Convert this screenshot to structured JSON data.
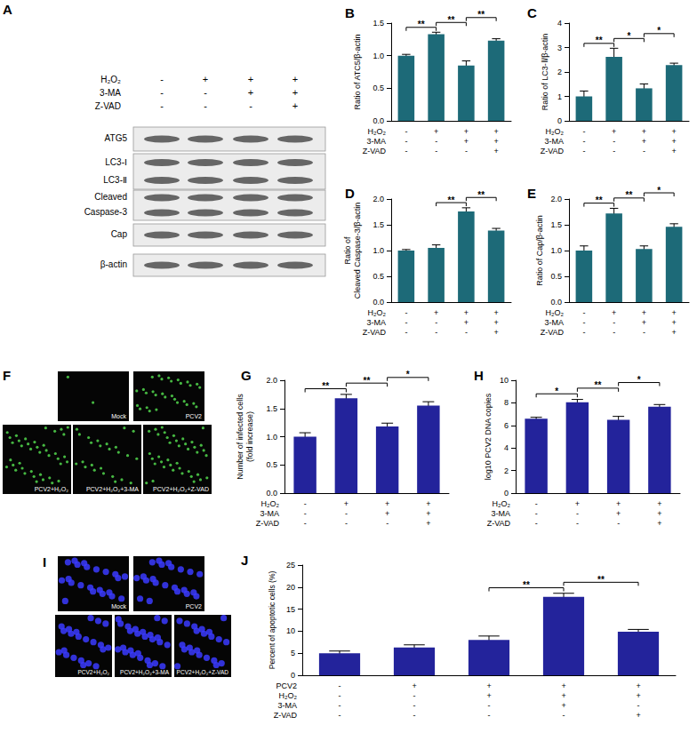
{
  "chart_data": [
    {
      "type": "bar",
      "title": "B",
      "ylabel": "Ratio of ATC5/β-actin",
      "categories": [
        null,
        null,
        null,
        null
      ],
      "values": [
        1.0,
        1.33,
        0.85,
        1.23
      ],
      "errors": [
        0.02,
        0.03,
        0.07,
        0.03
      ],
      "color": "#1d6a78",
      "ylim": [
        0,
        1.5
      ],
      "yticks": [
        {
          "value": 0,
          "label": "0.0"
        },
        0.5,
        {
          "value": 1,
          "label": "1.0"
        },
        1.5
      ],
      "grid": false,
      "treatments": [
        {
          "name": "H₂O₂",
          "signs": [
            "-",
            "+",
            "+",
            "+"
          ]
        },
        {
          "name": "3-MA",
          "signs": [
            "-",
            "-",
            "+",
            "+"
          ]
        },
        {
          "name": "Z-VAD",
          "signs": [
            "-",
            "-",
            "-",
            "+"
          ]
        }
      ],
      "significance": [
        {
          "from": 0,
          "to": 1,
          "label": "**"
        },
        {
          "from": 1,
          "to": 2,
          "label": "**"
        },
        {
          "from": 2,
          "to": 3,
          "label": "**"
        }
      ]
    },
    {
      "type": "bar",
      "title": "C",
      "ylabel": "Ratio of LC3-Ⅱ/β-actin",
      "categories": [
        null,
        null,
        null,
        null
      ],
      "values": [
        1.0,
        2.62,
        1.33,
        2.28
      ],
      "errors": [
        0.22,
        0.35,
        0.18,
        0.08
      ],
      "color": "#1d6a78",
      "ylim": [
        0,
        4
      ],
      "yticks": [
        0,
        1,
        2,
        3,
        4
      ],
      "grid": false,
      "treatments": [
        {
          "name": "H₂O₂",
          "signs": [
            "-",
            "+",
            "+",
            "+"
          ]
        },
        {
          "name": "3-MA",
          "signs": [
            "-",
            "-",
            "+",
            "+"
          ]
        },
        {
          "name": "Z-VAD",
          "signs": [
            "-",
            "-",
            "-",
            "+"
          ]
        }
      ],
      "significance": [
        {
          "from": 0,
          "to": 1,
          "label": "**"
        },
        {
          "from": 1,
          "to": 2,
          "label": "*"
        },
        {
          "from": 2,
          "to": 3,
          "label": "*"
        }
      ]
    },
    {
      "type": "bar",
      "title": "D",
      "ylabel": "Ratio of\nCleaved Caspase-3/β-actin",
      "categories": [
        null,
        null,
        null,
        null
      ],
      "values": [
        1.0,
        1.05,
        1.76,
        1.39
      ],
      "errors": [
        0.02,
        0.06,
        0.07,
        0.04
      ],
      "color": "#1d6a78",
      "ylim": [
        0,
        2
      ],
      "yticks": [
        {
          "value": 0,
          "label": "0.0"
        },
        0.5,
        {
          "value": 1,
          "label": "1.0"
        },
        1.5,
        {
          "value": 2,
          "label": "2.0"
        }
      ],
      "grid": false,
      "treatments": [
        {
          "name": "H₂O₂",
          "signs": [
            "-",
            "+",
            "+",
            "+"
          ]
        },
        {
          "name": "3-MA",
          "signs": [
            "-",
            "-",
            "+",
            "+"
          ]
        },
        {
          "name": "Z-VAD",
          "signs": [
            "-",
            "-",
            "-",
            "+"
          ]
        }
      ],
      "significance": [
        {
          "from": 1,
          "to": 2,
          "label": "**"
        },
        {
          "from": 2,
          "to": 3,
          "label": "**"
        }
      ]
    },
    {
      "type": "bar",
      "title": "E",
      "ylabel": "Ratio of Cap/β-actin",
      "categories": [
        null,
        null,
        null,
        null
      ],
      "values": [
        1.0,
        1.72,
        1.03,
        1.46
      ],
      "errors": [
        0.09,
        0.1,
        0.06,
        0.06
      ],
      "color": "#1d6a78",
      "ylim": [
        0,
        2
      ],
      "yticks": [
        {
          "value": 0,
          "label": "0.0"
        },
        0.5,
        {
          "value": 1,
          "label": "1.0"
        },
        1.5,
        {
          "value": 2,
          "label": "2.0"
        }
      ],
      "grid": false,
      "treatments": [
        {
          "name": "H₂O₂",
          "signs": [
            "-",
            "+",
            "+",
            "+"
          ]
        },
        {
          "name": "3-MA",
          "signs": [
            "-",
            "-",
            "+",
            "+"
          ]
        },
        {
          "name": "Z-VAD",
          "signs": [
            "-",
            "-",
            "-",
            "+"
          ]
        }
      ],
      "significance": [
        {
          "from": 0,
          "to": 1,
          "label": "**"
        },
        {
          "from": 1,
          "to": 2,
          "label": "**"
        },
        {
          "from": 2,
          "to": 3,
          "label": "*"
        }
      ]
    },
    {
      "type": "bar",
      "title": "G",
      "ylabel": "Number of infected cells\n(fold increase)",
      "categories": [
        null,
        null,
        null,
        null
      ],
      "values": [
        1.0,
        1.68,
        1.18,
        1.55
      ],
      "errors": [
        0.07,
        0.07,
        0.06,
        0.07
      ],
      "color": "#23239b",
      "ylim": [
        0,
        2
      ],
      "yticks": [
        {
          "value": 0,
          "label": "0.0"
        },
        0.5,
        {
          "value": 1,
          "label": "1.0"
        },
        1.5,
        {
          "value": 2,
          "label": "2.0"
        }
      ],
      "grid": false,
      "treatments": [
        {
          "name": "H₂O₂",
          "signs": [
            "-",
            "+",
            "+",
            "+"
          ]
        },
        {
          "name": "3-MA",
          "signs": [
            "-",
            "-",
            "+",
            "+"
          ]
        },
        {
          "name": "Z-VAD",
          "signs": [
            "-",
            "-",
            "-",
            "+"
          ]
        }
      ],
      "significance": [
        {
          "from": 0,
          "to": 1,
          "label": "**"
        },
        {
          "from": 1,
          "to": 2,
          "label": "**"
        },
        {
          "from": 2,
          "to": 3,
          "label": "*"
        }
      ]
    },
    {
      "type": "bar",
      "title": "H",
      "ylabel": "log10 PCV2 DNA copies",
      "categories": [
        null,
        null,
        null,
        null
      ],
      "values": [
        6.6,
        8.05,
        6.5,
        7.65
      ],
      "errors": [
        0.12,
        0.25,
        0.3,
        0.2
      ],
      "color": "#23239b",
      "ylim": [
        0,
        10
      ],
      "yticks": [
        0,
        2,
        4,
        6,
        8,
        10
      ],
      "grid": false,
      "treatments": [
        {
          "name": "H₂O₂",
          "signs": [
            "-",
            "+",
            "+",
            "+"
          ]
        },
        {
          "name": "3-MA",
          "signs": [
            "-",
            "-",
            "+",
            "+"
          ]
        },
        {
          "name": "Z-VAD",
          "signs": [
            "-",
            "-",
            "-",
            "+"
          ]
        }
      ],
      "significance": [
        {
          "from": 0,
          "to": 1,
          "label": "*"
        },
        {
          "from": 1,
          "to": 2,
          "label": "**"
        },
        {
          "from": 2,
          "to": 3,
          "label": "*"
        }
      ]
    },
    {
      "type": "bar",
      "title": "J",
      "ylabel": "Percent of apoptotic cells (%)",
      "categories": [
        null,
        null,
        null,
        null,
        null
      ],
      "values": [
        5.0,
        6.3,
        8.0,
        17.8,
        9.9
      ],
      "errors": [
        0.5,
        0.6,
        0.9,
        0.8,
        0.5
      ],
      "color": "#23239b",
      "ylim": [
        0,
        25
      ],
      "yticks": [
        0,
        5,
        10,
        15,
        20,
        25
      ],
      "grid": false,
      "treatments": [
        {
          "name": "PCV2",
          "signs": [
            "-",
            "+",
            "+",
            "+",
            "+"
          ]
        },
        {
          "name": "H₂O₂",
          "signs": [
            "-",
            "-",
            "+",
            "+",
            "+"
          ]
        },
        {
          "name": "3-MA",
          "signs": [
            "-",
            "-",
            "-",
            "+",
            "-"
          ]
        },
        {
          "name": "Z-VAD",
          "signs": [
            "-",
            "-",
            "-",
            "-",
            "+"
          ]
        }
      ],
      "significance": [
        {
          "from": 2,
          "to": 3,
          "label": "**"
        },
        {
          "from": 3,
          "to": 4,
          "label": "**"
        }
      ]
    }
  ],
  "blot": {
    "title": "A",
    "treatments": [
      {
        "name": "H₂O₂",
        "signs": [
          "-",
          "+",
          "+",
          "+"
        ]
      },
      {
        "name": "3-MA",
        "signs": [
          "-",
          "-",
          "+",
          "+"
        ]
      },
      {
        "name": "Z-VAD",
        "signs": [
          "-",
          "-",
          "-",
          "+"
        ]
      }
    ],
    "rows": [
      {
        "labels": [
          "ATG5"
        ]
      },
      {
        "labels": [
          "LC3-Ⅰ",
          "LC3-Ⅱ"
        ]
      },
      {
        "labels": [
          "Cleaved",
          "Caspase-3"
        ]
      },
      {
        "labels": [
          "Cap"
        ]
      },
      {
        "labels": [
          "β-actin"
        ]
      }
    ]
  },
  "micrographs": [
    {
      "title": "F",
      "rows": [
        [
          "Mock",
          "PCV2"
        ],
        [
          "PCV2+H₂O₂",
          "PCV2+H₂O₂+3-MA",
          "PCV2+H₂O₂+Z-VAD"
        ]
      ]
    },
    {
      "title": "I",
      "rows": [
        [
          "Mock",
          "PCV2"
        ],
        [
          "PCV2+H₂O₂",
          "PCV2+H₂O₂+3-MA",
          "PCV2+H₂O₂+Z-VAD"
        ]
      ]
    }
  ]
}
